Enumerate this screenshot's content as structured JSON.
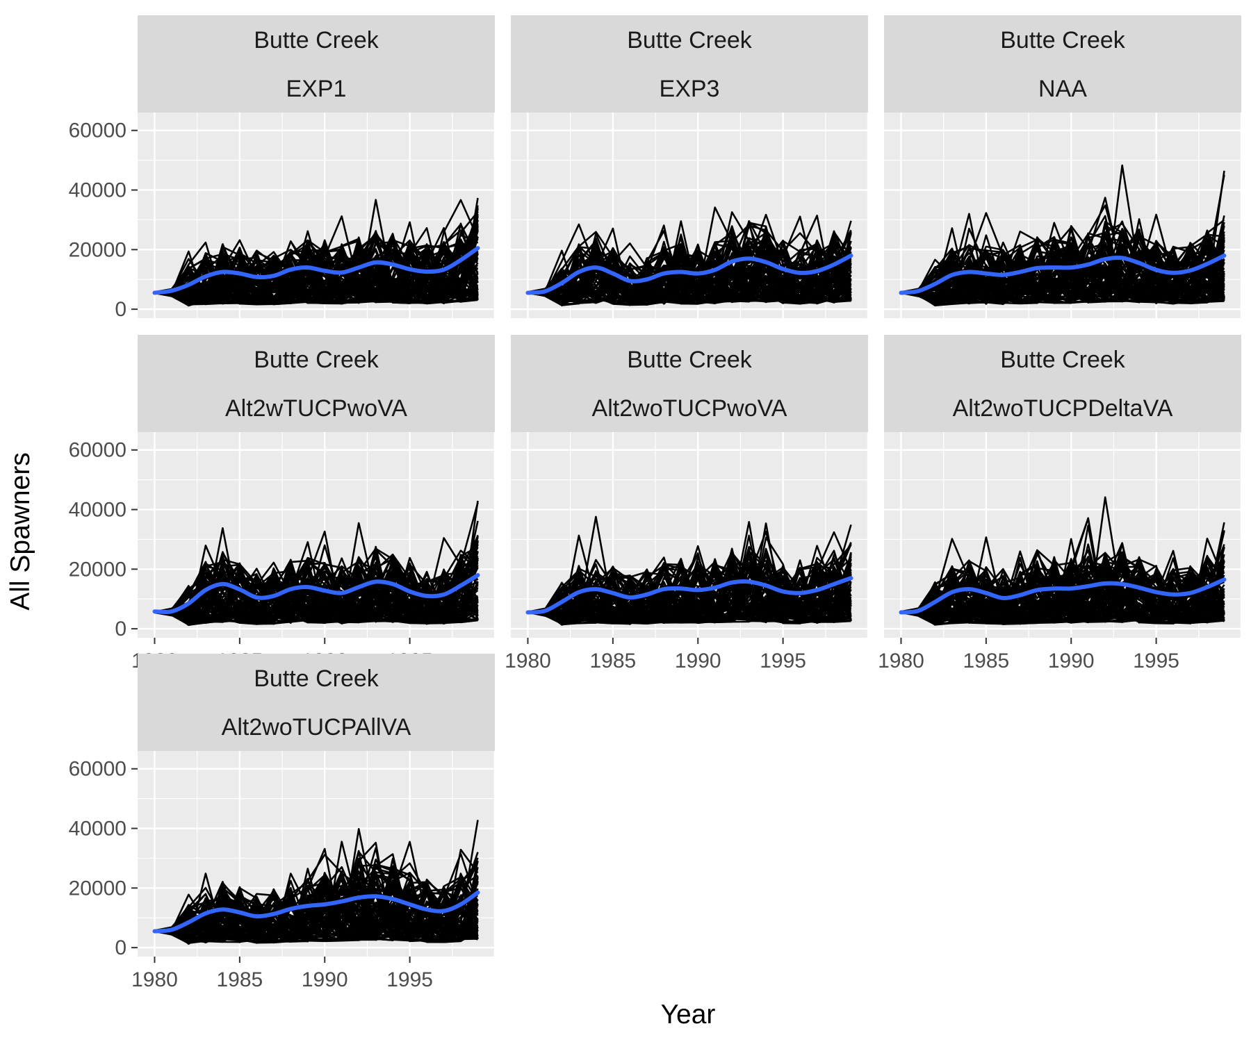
{
  "chart_data": {
    "type": "line",
    "xlabel": "Year",
    "ylabel": "All Spawners",
    "x_ticks": [
      1980,
      1985,
      1990,
      1995
    ],
    "y_ticks": [
      0,
      20000,
      40000,
      60000
    ],
    "xlim": [
      1979,
      2000
    ],
    "ylim": [
      -3000,
      66000
    ],
    "grid": true,
    "colors": {
      "simulation_lines": "#000000",
      "smooth_line": "#3366FF",
      "panel_bg": "#EBEBEB",
      "strip_bg": "#D9D9D9",
      "grid": "#FFFFFF"
    },
    "panels": [
      {
        "region": "Butte Creek",
        "scenario": "EXP1",
        "smooth": [
          [
            1980,
            5500
          ],
          [
            1981,
            6200
          ],
          [
            1982,
            8200
          ],
          [
            1983,
            11000
          ],
          [
            1984,
            12500
          ],
          [
            1985,
            12000
          ],
          [
            1986,
            10800
          ],
          [
            1987,
            11200
          ],
          [
            1988,
            13300
          ],
          [
            1989,
            14000
          ],
          [
            1990,
            12900
          ],
          [
            1991,
            12300
          ],
          [
            1992,
            14000
          ],
          [
            1993,
            15700
          ],
          [
            1994,
            15000
          ],
          [
            1995,
            13400
          ],
          [
            1996,
            12600
          ],
          [
            1997,
            13300
          ],
          [
            1998,
            16500
          ],
          [
            1999,
            20500
          ]
        ]
      },
      {
        "region": "Butte Creek",
        "scenario": "EXP3",
        "smooth": [
          [
            1980,
            5500
          ],
          [
            1981,
            6000
          ],
          [
            1982,
            8800
          ],
          [
            1983,
            12500
          ],
          [
            1984,
            14000
          ],
          [
            1985,
            12000
          ],
          [
            1986,
            9500
          ],
          [
            1987,
            10000
          ],
          [
            1988,
            12000
          ],
          [
            1989,
            12500
          ],
          [
            1990,
            12000
          ],
          [
            1991,
            13200
          ],
          [
            1992,
            16000
          ],
          [
            1993,
            17000
          ],
          [
            1994,
            15800
          ],
          [
            1995,
            13500
          ],
          [
            1996,
            12200
          ],
          [
            1997,
            12800
          ],
          [
            1998,
            15000
          ],
          [
            1999,
            18000
          ]
        ]
      },
      {
        "region": "Butte Creek",
        "scenario": "NAA",
        "smooth": [
          [
            1980,
            5500
          ],
          [
            1981,
            6100
          ],
          [
            1982,
            8500
          ],
          [
            1983,
            11500
          ],
          [
            1984,
            12500
          ],
          [
            1985,
            12000
          ],
          [
            1986,
            11500
          ],
          [
            1987,
            12500
          ],
          [
            1988,
            13800
          ],
          [
            1989,
            14000
          ],
          [
            1990,
            14000
          ],
          [
            1991,
            15000
          ],
          [
            1992,
            16800
          ],
          [
            1993,
            17200
          ],
          [
            1994,
            15500
          ],
          [
            1995,
            13200
          ],
          [
            1996,
            12200
          ],
          [
            1997,
            13000
          ],
          [
            1998,
            15200
          ],
          [
            1999,
            18000
          ]
        ]
      },
      {
        "region": "Butte Creek",
        "scenario": "Alt2wTUCPwoVA",
        "smooth": [
          [
            1980,
            5800
          ],
          [
            1981,
            5800
          ],
          [
            1982,
            8500
          ],
          [
            1983,
            13000
          ],
          [
            1984,
            15000
          ],
          [
            1985,
            13200
          ],
          [
            1986,
            10500
          ],
          [
            1987,
            11000
          ],
          [
            1988,
            13300
          ],
          [
            1989,
            14000
          ],
          [
            1990,
            12800
          ],
          [
            1991,
            12000
          ],
          [
            1992,
            14000
          ],
          [
            1993,
            15800
          ],
          [
            1994,
            15000
          ],
          [
            1995,
            12500
          ],
          [
            1996,
            11000
          ],
          [
            1997,
            11500
          ],
          [
            1998,
            14500
          ],
          [
            1999,
            18000
          ]
        ]
      },
      {
        "region": "Butte Creek",
        "scenario": "Alt2woTUCPwoVA",
        "smooth": [
          [
            1980,
            5500
          ],
          [
            1981,
            6000
          ],
          [
            1982,
            9000
          ],
          [
            1983,
            12300
          ],
          [
            1984,
            13300
          ],
          [
            1985,
            12000
          ],
          [
            1986,
            10500
          ],
          [
            1987,
            11500
          ],
          [
            1988,
            13300
          ],
          [
            1989,
            13500
          ],
          [
            1990,
            13000
          ],
          [
            1991,
            13800
          ],
          [
            1992,
            15500
          ],
          [
            1993,
            15800
          ],
          [
            1994,
            14500
          ],
          [
            1995,
            12500
          ],
          [
            1996,
            12000
          ],
          [
            1997,
            13000
          ],
          [
            1998,
            15000
          ],
          [
            1999,
            17000
          ]
        ]
      },
      {
        "region": "Butte Creek",
        "scenario": "Alt2woTUCPDeltaVA",
        "smooth": [
          [
            1980,
            5500
          ],
          [
            1981,
            6000
          ],
          [
            1982,
            9000
          ],
          [
            1983,
            12300
          ],
          [
            1984,
            13300
          ],
          [
            1985,
            12000
          ],
          [
            1986,
            10300
          ],
          [
            1987,
            11300
          ],
          [
            1988,
            13000
          ],
          [
            1989,
            13500
          ],
          [
            1990,
            13500
          ],
          [
            1991,
            14300
          ],
          [
            1992,
            15200
          ],
          [
            1993,
            15000
          ],
          [
            1994,
            13800
          ],
          [
            1995,
            12300
          ],
          [
            1996,
            11500
          ],
          [
            1997,
            12000
          ],
          [
            1998,
            14000
          ],
          [
            1999,
            16500
          ]
        ]
      },
      {
        "region": "Butte Creek",
        "scenario": "Alt2woTUCPAllVA",
        "smooth": [
          [
            1980,
            5500
          ],
          [
            1981,
            6000
          ],
          [
            1982,
            8500
          ],
          [
            1983,
            11500
          ],
          [
            1984,
            12800
          ],
          [
            1985,
            11800
          ],
          [
            1986,
            10500
          ],
          [
            1987,
            11300
          ],
          [
            1988,
            13000
          ],
          [
            1989,
            14000
          ],
          [
            1990,
            14500
          ],
          [
            1991,
            15500
          ],
          [
            1992,
            16800
          ],
          [
            1993,
            17200
          ],
          [
            1994,
            16300
          ],
          [
            1995,
            14500
          ],
          [
            1996,
            12800
          ],
          [
            1997,
            12300
          ],
          [
            1998,
            14500
          ],
          [
            1999,
            18500
          ]
        ]
      }
    ]
  }
}
